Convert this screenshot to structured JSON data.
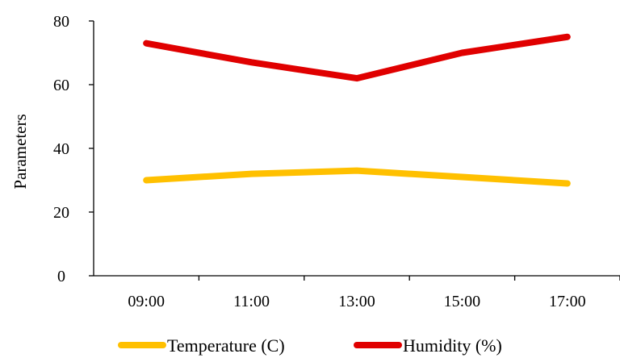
{
  "chart_data": {
    "type": "line",
    "categories": [
      "09:00",
      "11:00",
      "13:00",
      "15:00",
      "17:00"
    ],
    "series": [
      {
        "name": "Temperature (C)",
        "color": "#FFC000",
        "values": [
          30,
          32,
          33,
          31,
          29
        ]
      },
      {
        "name": "Humidity (%)",
        "color": "#E00000",
        "values": [
          73,
          67,
          62,
          70,
          75
        ]
      }
    ],
    "title": "",
    "xlabel": "",
    "ylabel": "Parameters",
    "ylim": [
      0,
      80
    ],
    "yticks": [
      0,
      20,
      40,
      60,
      80
    ],
    "grid": false,
    "legend_position": "bottom"
  }
}
